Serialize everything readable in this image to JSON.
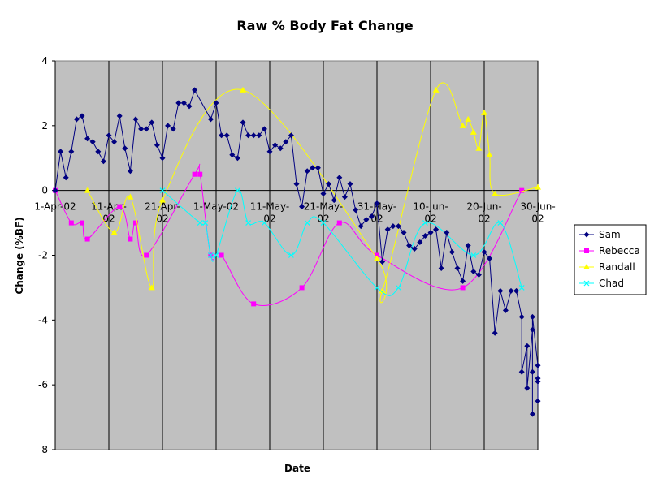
{
  "chart_data": {
    "type": "line",
    "title": "Raw % Body Fat Change",
    "xlabel": "Date",
    "ylabel": "Change (%BF)",
    "ylim": [
      -8,
      4
    ],
    "ytick_step": 2,
    "x_range": [
      "2002-04-01",
      "2002-06-30"
    ],
    "x_ticks": [
      {
        "date": "2002-04-01",
        "lines": [
          "1-Apr-02"
        ]
      },
      {
        "date": "2002-04-11",
        "lines": [
          "11-Apr-",
          "02"
        ]
      },
      {
        "date": "2002-04-21",
        "lines": [
          "21-Apr-",
          "02"
        ]
      },
      {
        "date": "2002-05-01",
        "lines": [
          "1-May-02"
        ]
      },
      {
        "date": "2002-05-11",
        "lines": [
          "11-May-",
          "02"
        ]
      },
      {
        "date": "2002-05-21",
        "lines": [
          "21-May-",
          "02"
        ]
      },
      {
        "date": "2002-05-31",
        "lines": [
          "31-May-",
          "02"
        ]
      },
      {
        "date": "2002-06-10",
        "lines": [
          "10-Jun-",
          "02"
        ]
      },
      {
        "date": "2002-06-20",
        "lines": [
          "20-Jun-",
          "02"
        ]
      },
      {
        "date": "2002-06-30",
        "lines": [
          "30-Jun-",
          "02"
        ]
      }
    ],
    "grid": true,
    "plot_background": "#c0c0c0",
    "legend_position": "right",
    "series": [
      {
        "name": "Sam",
        "color": "#000080",
        "marker": "diamond",
        "smooth": false,
        "points": [
          [
            "2002-04-01",
            0
          ],
          [
            "2002-04-02",
            1.2
          ],
          [
            "2002-04-03",
            0.4
          ],
          [
            "2002-04-04",
            1.2
          ],
          [
            "2002-04-05",
            2.2
          ],
          [
            "2002-04-06",
            2.3
          ],
          [
            "2002-04-07",
            1.6
          ],
          [
            "2002-04-08",
            1.5
          ],
          [
            "2002-04-09",
            1.2
          ],
          [
            "2002-04-10",
            0.9
          ],
          [
            "2002-04-11",
            1.7
          ],
          [
            "2002-04-12",
            1.5
          ],
          [
            "2002-04-13",
            2.3
          ],
          [
            "2002-04-14",
            1.3
          ],
          [
            "2002-04-15",
            0.6
          ],
          [
            "2002-04-16",
            2.2
          ],
          [
            "2002-04-17",
            1.9
          ],
          [
            "2002-04-18",
            1.9
          ],
          [
            "2002-04-19",
            2.1
          ],
          [
            "2002-04-20",
            1.4
          ],
          [
            "2002-04-21",
            1.0
          ],
          [
            "2002-04-22",
            2.0
          ],
          [
            "2002-04-23",
            1.9
          ],
          [
            "2002-04-24",
            2.7
          ],
          [
            "2002-04-25",
            2.7
          ],
          [
            "2002-04-26",
            2.6
          ],
          [
            "2002-04-27",
            3.1
          ],
          [
            "2002-04-30",
            2.2
          ],
          [
            "2002-05-01",
            2.7
          ],
          [
            "2002-05-02",
            1.7
          ],
          [
            "2002-05-03",
            1.7
          ],
          [
            "2002-05-04",
            1.1
          ],
          [
            "2002-05-05",
            1.0
          ],
          [
            "2002-05-06",
            2.1
          ],
          [
            "2002-05-07",
            1.7
          ],
          [
            "2002-05-08",
            1.7
          ],
          [
            "2002-05-09",
            1.7
          ],
          [
            "2002-05-10",
            1.9
          ],
          [
            "2002-05-11",
            1.2
          ],
          [
            "2002-05-12",
            1.4
          ],
          [
            "2002-05-13",
            1.3
          ],
          [
            "2002-05-14",
            1.5
          ],
          [
            "2002-05-15",
            1.7
          ],
          [
            "2002-05-16",
            0.2
          ],
          [
            "2002-05-17",
            -0.5
          ],
          [
            "2002-05-18",
            0.6
          ],
          [
            "2002-05-19",
            0.7
          ],
          [
            "2002-05-20",
            0.7
          ],
          [
            "2002-05-21",
            -0.1
          ],
          [
            "2002-05-22",
            0.2
          ],
          [
            "2002-05-23",
            -0.3
          ],
          [
            "2002-05-24",
            0.4
          ],
          [
            "2002-05-25",
            -0.2
          ],
          [
            "2002-05-26",
            0.2
          ],
          [
            "2002-05-27",
            -0.6
          ],
          [
            "2002-05-28",
            -1.1
          ],
          [
            "2002-05-29",
            -0.9
          ],
          [
            "2002-05-30",
            -0.8
          ],
          [
            "2002-05-31",
            -0.4
          ],
          [
            "2002-06-01",
            -2.2
          ],
          [
            "2002-06-02",
            -1.2
          ],
          [
            "2002-06-03",
            -1.1
          ],
          [
            "2002-06-04",
            -1.1
          ],
          [
            "2002-06-05",
            -1.3
          ],
          [
            "2002-06-06",
            -1.7
          ],
          [
            "2002-06-07",
            -1.8
          ],
          [
            "2002-06-08",
            -1.6
          ],
          [
            "2002-06-09",
            -1.4
          ],
          [
            "2002-06-10",
            -1.3
          ],
          [
            "2002-06-11",
            -1.2
          ],
          [
            "2002-06-12",
            -2.4
          ],
          [
            "2002-06-13",
            -1.3
          ],
          [
            "2002-06-14",
            -1.9
          ],
          [
            "2002-06-15",
            -2.4
          ],
          [
            "2002-06-16",
            -2.8
          ],
          [
            "2002-06-17",
            -1.7
          ],
          [
            "2002-06-18",
            -2.5
          ],
          [
            "2002-06-19",
            -2.6
          ],
          [
            "2002-06-20",
            -1.9
          ],
          [
            "2002-06-21",
            -2.1
          ],
          [
            "2002-06-22",
            -4.4
          ],
          [
            "2002-06-23",
            -3.1
          ],
          [
            "2002-06-24",
            -3.7
          ],
          [
            "2002-06-25",
            -3.1
          ],
          [
            "2002-06-26",
            -3.1
          ],
          [
            "2002-06-27",
            -3.9
          ],
          [
            "2002-06-27",
            -5.6
          ],
          [
            "2002-06-28",
            -4.8
          ],
          [
            "2002-06-28",
            -6.1
          ],
          [
            "2002-06-29",
            -4.3
          ],
          [
            "2002-06-29",
            -6.9
          ],
          [
            "2002-06-29",
            -5.6
          ],
          [
            "2002-06-29",
            -3.9
          ],
          [
            "2002-06-30",
            -5.4
          ],
          [
            "2002-06-30",
            -5.8
          ],
          [
            "2002-06-30",
            -6.5
          ],
          [
            "2002-06-30",
            -5.9
          ]
        ]
      },
      {
        "name": "Rebecca",
        "color": "#ff00ff",
        "marker": "square",
        "smooth": true,
        "points": [
          [
            "2002-04-01",
            0
          ],
          [
            "2002-04-04",
            -1
          ],
          [
            "2002-04-06",
            -1
          ],
          [
            "2002-04-07",
            -1.5
          ],
          [
            "2002-04-13",
            -0.5
          ],
          [
            "2002-04-15",
            -1.5
          ],
          [
            "2002-04-16",
            -1
          ],
          [
            "2002-04-18",
            -2
          ],
          [
            "2002-04-27",
            0.5
          ],
          [
            "2002-04-28",
            0.5
          ],
          [
            "2002-04-30",
            -2
          ],
          [
            "2002-05-02",
            -2
          ],
          [
            "2002-05-08",
            -3.5
          ],
          [
            "2002-05-17",
            -3
          ],
          [
            "2002-05-24",
            -1
          ],
          [
            "2002-05-31",
            -2
          ],
          [
            "2002-06-16",
            -3
          ],
          [
            "2002-06-27",
            0
          ]
        ]
      },
      {
        "name": "Randall",
        "color": "#ffff00",
        "marker": "triangle",
        "smooth": true,
        "points": [
          [
            "2002-04-07",
            0
          ],
          [
            "2002-04-12",
            -1.3
          ],
          [
            "2002-04-15",
            -0.2
          ],
          [
            "2002-04-19",
            -3
          ],
          [
            "2002-04-21",
            -0.3
          ],
          [
            "2002-05-06",
            3.1
          ],
          [
            "2002-05-31",
            -2.1
          ],
          [
            "2002-06-01",
            -3.1
          ],
          [
            "2002-06-11",
            3.1
          ],
          [
            "2002-06-16",
            2
          ],
          [
            "2002-06-17",
            2.2
          ],
          [
            "2002-06-18",
            1.8
          ],
          [
            "2002-06-19",
            1.3
          ],
          [
            "2002-06-20",
            2.4
          ],
          [
            "2002-06-21",
            1.1
          ],
          [
            "2002-06-22",
            -0.1
          ],
          [
            "2002-06-30",
            0.1
          ]
        ]
      },
      {
        "name": "Chad",
        "color": "#00ffff",
        "marker": "x",
        "smooth": true,
        "points": [
          [
            "2002-04-21",
            0
          ],
          [
            "2002-04-28",
            -1
          ],
          [
            "2002-04-29",
            -1
          ],
          [
            "2002-04-30",
            -2
          ],
          [
            "2002-05-01",
            -2
          ],
          [
            "2002-05-05",
            0
          ],
          [
            "2002-05-07",
            -1
          ],
          [
            "2002-05-10",
            -1
          ],
          [
            "2002-05-15",
            -2
          ],
          [
            "2002-05-18",
            -1
          ],
          [
            "2002-05-21",
            -1
          ],
          [
            "2002-05-31",
            -3
          ],
          [
            "2002-06-04",
            -3
          ],
          [
            "2002-06-09",
            -1
          ],
          [
            "2002-06-18",
            -2
          ],
          [
            "2002-06-23",
            -1
          ],
          [
            "2002-06-27",
            -3
          ]
        ]
      }
    ]
  }
}
